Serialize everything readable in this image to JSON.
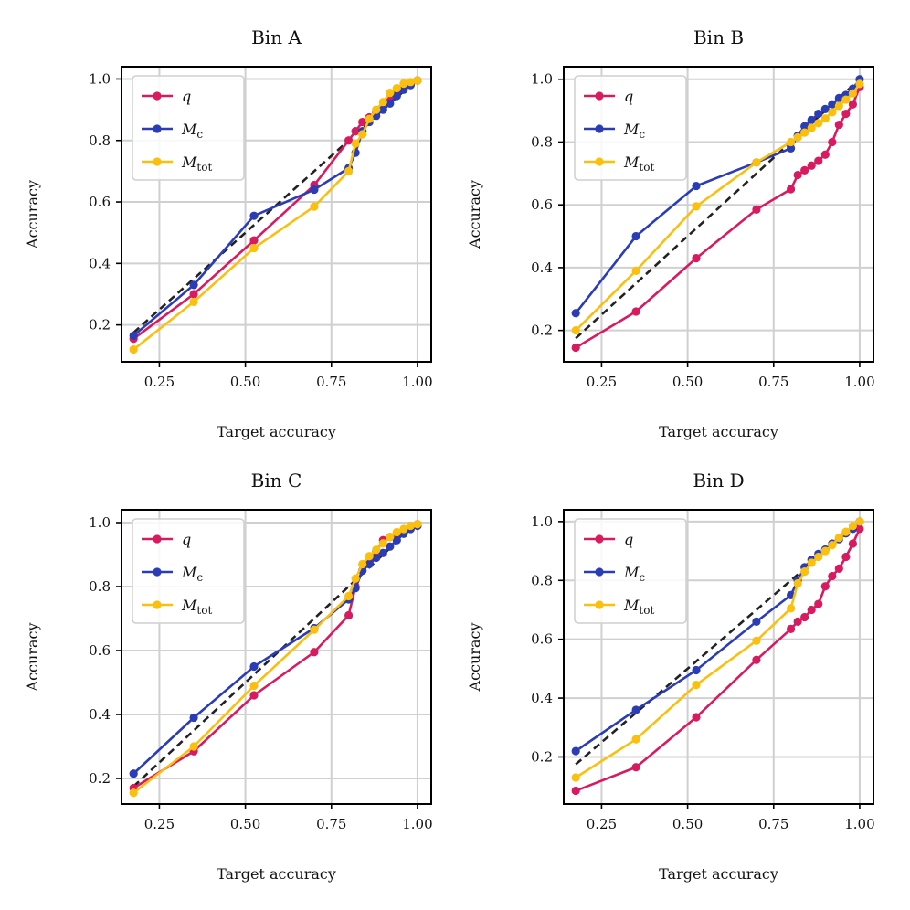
{
  "chart_data": [
    {
      "type": "line",
      "title": "Bin A",
      "xlabel": "Target accuracy",
      "ylabel": "Accuracy",
      "xlim": [
        0.14,
        1.04
      ],
      "ylim": [
        0.08,
        1.04
      ],
      "xticks": [
        0.25,
        0.5,
        0.75,
        1.0
      ],
      "xtick_labels": [
        "0.25",
        "0.50",
        "0.75",
        "1.00"
      ],
      "yticks": [
        0.2,
        0.4,
        0.6,
        0.8,
        1.0
      ],
      "ytick_labels": [
        "0.2",
        "0.4",
        "0.6",
        "0.8",
        "1.0"
      ],
      "grid": true,
      "legend": "top-left",
      "reference_line": {
        "style": "dashed",
        "color": "#222222",
        "x": [
          0.175,
          1.0
        ],
        "y": [
          0.175,
          1.0
        ]
      },
      "series": [
        {
          "name": "q",
          "color": "#d81b60",
          "x": [
            0.175,
            0.35,
            0.525,
            0.7,
            0.8,
            0.82,
            0.84,
            0.86,
            0.88,
            0.9,
            0.92,
            0.94,
            0.96,
            0.98,
            1.0
          ],
          "y": [
            0.155,
            0.3,
            0.475,
            0.655,
            0.8,
            0.83,
            0.86,
            0.875,
            0.89,
            0.91,
            0.93,
            0.955,
            0.97,
            0.985,
            0.995
          ]
        },
        {
          "name": "M_c",
          "color": "#2a3db5",
          "x": [
            0.175,
            0.35,
            0.525,
            0.7,
            0.8,
            0.82,
            0.84,
            0.86,
            0.88,
            0.9,
            0.92,
            0.94,
            0.96,
            0.98,
            1.0
          ],
          "y": [
            0.165,
            0.33,
            0.555,
            0.64,
            0.71,
            0.76,
            0.83,
            0.86,
            0.88,
            0.9,
            0.92,
            0.945,
            0.965,
            0.98,
            0.995
          ]
        },
        {
          "name": "M_tot",
          "color": "#fbbf0e",
          "x": [
            0.175,
            0.35,
            0.525,
            0.7,
            0.8,
            0.82,
            0.84,
            0.86,
            0.88,
            0.9,
            0.92,
            0.94,
            0.96,
            0.98,
            1.0
          ],
          "y": [
            0.12,
            0.275,
            0.45,
            0.585,
            0.7,
            0.79,
            0.82,
            0.87,
            0.9,
            0.925,
            0.955,
            0.97,
            0.985,
            0.99,
            0.995
          ]
        }
      ]
    },
    {
      "type": "line",
      "title": "Bin B",
      "xlabel": "Target accuracy",
      "ylabel": "Accuracy",
      "xlim": [
        0.14,
        1.04
      ],
      "ylim": [
        0.1,
        1.04
      ],
      "xticks": [
        0.25,
        0.5,
        0.75,
        1.0
      ],
      "xtick_labels": [
        "0.25",
        "0.50",
        "0.75",
        "1.00"
      ],
      "yticks": [
        0.2,
        0.4,
        0.6,
        0.8,
        1.0
      ],
      "ytick_labels": [
        "0.2",
        "0.4",
        "0.6",
        "0.8",
        "1.0"
      ],
      "grid": true,
      "legend": "top-left",
      "reference_line": {
        "style": "dashed",
        "color": "#222222",
        "x": [
          0.175,
          1.0
        ],
        "y": [
          0.175,
          1.0
        ]
      },
      "series": [
        {
          "name": "q",
          "color": "#d81b60",
          "x": [
            0.175,
            0.35,
            0.525,
            0.7,
            0.8,
            0.82,
            0.84,
            0.86,
            0.88,
            0.9,
            0.92,
            0.94,
            0.96,
            0.98,
            1.0
          ],
          "y": [
            0.145,
            0.26,
            0.43,
            0.585,
            0.65,
            0.695,
            0.71,
            0.725,
            0.74,
            0.76,
            0.8,
            0.855,
            0.89,
            0.92,
            0.975
          ]
        },
        {
          "name": "M_c",
          "color": "#2a3db5",
          "x": [
            0.175,
            0.35,
            0.525,
            0.7,
            0.8,
            0.82,
            0.84,
            0.86,
            0.88,
            0.9,
            0.92,
            0.94,
            0.96,
            0.98,
            1.0
          ],
          "y": [
            0.255,
            0.5,
            0.66,
            0.735,
            0.78,
            0.82,
            0.85,
            0.87,
            0.89,
            0.905,
            0.92,
            0.94,
            0.95,
            0.97,
            1.0
          ]
        },
        {
          "name": "M_tot",
          "color": "#fbbf0e",
          "x": [
            0.175,
            0.35,
            0.525,
            0.7,
            0.8,
            0.82,
            0.84,
            0.86,
            0.88,
            0.9,
            0.92,
            0.94,
            0.96,
            0.98,
            1.0
          ],
          "y": [
            0.2,
            0.39,
            0.595,
            0.735,
            0.8,
            0.815,
            0.83,
            0.845,
            0.86,
            0.875,
            0.895,
            0.915,
            0.935,
            0.955,
            0.985
          ]
        }
      ]
    },
    {
      "type": "line",
      "title": "Bin C",
      "xlabel": "Target accuracy",
      "ylabel": "Accuracy",
      "xlim": [
        0.14,
        1.04
      ],
      "ylim": [
        0.12,
        1.04
      ],
      "xticks": [
        0.25,
        0.5,
        0.75,
        1.0
      ],
      "xtick_labels": [
        "0.25",
        "0.50",
        "0.75",
        "1.00"
      ],
      "yticks": [
        0.2,
        0.4,
        0.6,
        0.8,
        1.0
      ],
      "ytick_labels": [
        "0.2",
        "0.4",
        "0.6",
        "0.8",
        "1.0"
      ],
      "grid": true,
      "legend": "top-left",
      "reference_line": {
        "style": "dashed",
        "color": "#222222",
        "x": [
          0.175,
          1.0
        ],
        "y": [
          0.175,
          1.0
        ]
      },
      "series": [
        {
          "name": "q",
          "color": "#d81b60",
          "x": [
            0.175,
            0.35,
            0.525,
            0.7,
            0.8,
            0.82,
            0.84,
            0.86,
            0.88,
            0.9,
            0.92,
            0.94,
            0.96,
            0.98,
            1.0
          ],
          "y": [
            0.17,
            0.285,
            0.46,
            0.595,
            0.71,
            0.8,
            0.85,
            0.875,
            0.91,
            0.945,
            0.955,
            0.965,
            0.975,
            0.985,
            0.995
          ]
        },
        {
          "name": "M_c",
          "color": "#2a3db5",
          "x": [
            0.175,
            0.35,
            0.525,
            0.7,
            0.8,
            0.82,
            0.84,
            0.86,
            0.88,
            0.9,
            0.92,
            0.94,
            0.96,
            0.98,
            1.0
          ],
          "y": [
            0.215,
            0.39,
            0.55,
            0.67,
            0.76,
            0.795,
            0.85,
            0.87,
            0.89,
            0.905,
            0.925,
            0.945,
            0.965,
            0.98,
            0.99
          ]
        },
        {
          "name": "M_tot",
          "color": "#fbbf0e",
          "x": [
            0.175,
            0.35,
            0.525,
            0.7,
            0.8,
            0.82,
            0.84,
            0.86,
            0.88,
            0.9,
            0.92,
            0.94,
            0.96,
            0.98,
            1.0
          ],
          "y": [
            0.155,
            0.3,
            0.49,
            0.665,
            0.77,
            0.825,
            0.87,
            0.895,
            0.915,
            0.935,
            0.955,
            0.97,
            0.98,
            0.99,
            0.995
          ]
        }
      ]
    },
    {
      "type": "line",
      "title": "Bin D",
      "xlabel": "Target accuracy",
      "ylabel": "Accuracy",
      "xlim": [
        0.14,
        1.04
      ],
      "ylim": [
        0.04,
        1.04
      ],
      "xticks": [
        0.25,
        0.5,
        0.75,
        1.0
      ],
      "xtick_labels": [
        "0.25",
        "0.50",
        "0.75",
        "1.00"
      ],
      "yticks": [
        0.2,
        0.4,
        0.6,
        0.8,
        1.0
      ],
      "ytick_labels": [
        "0.2",
        "0.4",
        "0.6",
        "0.8",
        "1.0"
      ],
      "grid": true,
      "legend": "top-left",
      "reference_line": {
        "style": "dashed",
        "color": "#222222",
        "x": [
          0.175,
          1.0
        ],
        "y": [
          0.175,
          1.0
        ]
      },
      "series": [
        {
          "name": "q",
          "color": "#d81b60",
          "x": [
            0.175,
            0.35,
            0.525,
            0.7,
            0.8,
            0.82,
            0.84,
            0.86,
            0.88,
            0.9,
            0.92,
            0.94,
            0.96,
            0.98,
            1.0
          ],
          "y": [
            0.085,
            0.165,
            0.335,
            0.53,
            0.635,
            0.66,
            0.675,
            0.7,
            0.72,
            0.78,
            0.815,
            0.84,
            0.88,
            0.925,
            0.975
          ]
        },
        {
          "name": "M_c",
          "color": "#2a3db5",
          "x": [
            0.175,
            0.35,
            0.525,
            0.7,
            0.8,
            0.82,
            0.84,
            0.86,
            0.88,
            0.9,
            0.92,
            0.94,
            0.96,
            0.98,
            1.0
          ],
          "y": [
            0.22,
            0.36,
            0.495,
            0.66,
            0.75,
            0.8,
            0.845,
            0.87,
            0.89,
            0.905,
            0.925,
            0.94,
            0.96,
            0.975,
            1.0
          ]
        },
        {
          "name": "M_tot",
          "color": "#fbbf0e",
          "x": [
            0.175,
            0.35,
            0.525,
            0.7,
            0.8,
            0.82,
            0.84,
            0.86,
            0.88,
            0.9,
            0.92,
            0.94,
            0.96,
            0.98,
            1.0
          ],
          "y": [
            0.13,
            0.26,
            0.445,
            0.595,
            0.705,
            0.79,
            0.83,
            0.86,
            0.88,
            0.9,
            0.92,
            0.945,
            0.965,
            0.985,
            1.0
          ]
        }
      ]
    }
  ]
}
